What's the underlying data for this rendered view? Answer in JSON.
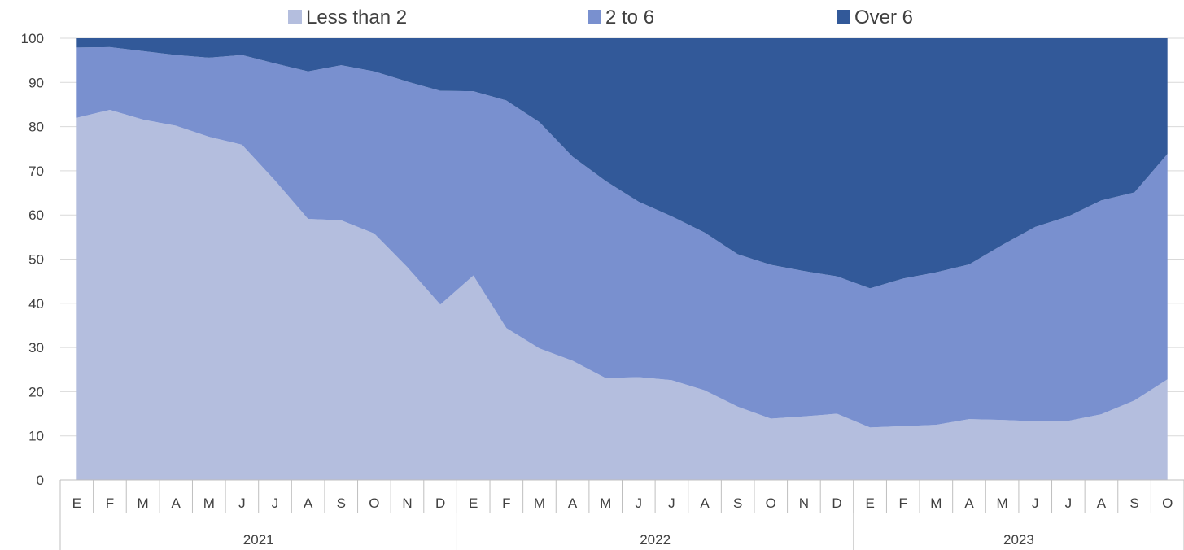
{
  "chart_data": {
    "type": "area",
    "stacked": true,
    "title": "",
    "xlabel": "",
    "ylabel": "",
    "ylim": [
      0,
      100
    ],
    "yticks": [
      0,
      10,
      20,
      30,
      40,
      50,
      60,
      70,
      80,
      90,
      100
    ],
    "grid": "horizontal",
    "legend_position": "top",
    "categories": [
      "E",
      "F",
      "M",
      "A",
      "M",
      "J",
      "J",
      "A",
      "S",
      "O",
      "N",
      "D",
      "E",
      "F",
      "M",
      "A",
      "M",
      "J",
      "J",
      "A",
      "S",
      "O",
      "N",
      "D",
      "E",
      "F",
      "M",
      "A",
      "M",
      "J",
      "J",
      "A",
      "S",
      "O"
    ],
    "groups": [
      {
        "label": "2021",
        "count": 12
      },
      {
        "label": "2022",
        "count": 12
      },
      {
        "label": "2023",
        "count": 10
      }
    ],
    "series": [
      {
        "name": "Less than 2",
        "color": "#b4bede",
        "values": [
          82,
          83.8,
          81.6,
          80.2,
          77.7,
          75.9,
          67.8,
          59.1,
          58.8,
          55.8,
          48.2,
          39.7,
          46.3,
          34.4,
          29.8,
          27,
          23.1,
          23.3,
          22.6,
          20.3,
          16.6,
          13.9,
          14.4,
          15,
          11.9,
          12.2,
          12.5,
          13.8,
          13.6,
          13.3,
          13.4,
          14.9,
          18,
          22.8
        ]
      },
      {
        "name": "2 to 6",
        "color": "#7990cf",
        "values": [
          15.9,
          14.2,
          15.5,
          16,
          17.9,
          20.3,
          26.5,
          33.4,
          35.1,
          36.7,
          42,
          48.4,
          41.7,
          51.5,
          51.2,
          46.2,
          44.6,
          39.7,
          37.1,
          35.7,
          34.5,
          34.8,
          32.9,
          31.1,
          31.5,
          33.4,
          34.5,
          35,
          39.6,
          44,
          46.3,
          48.4,
          47.1,
          51
        ]
      },
      {
        "name": "Over 6",
        "color": "#325999",
        "values": [
          2.1,
          2,
          2.9,
          3.8,
          4.4,
          3.8,
          5.7,
          7.5,
          6.1,
          7.5,
          9.8,
          11.9,
          12,
          14.1,
          19,
          26.8,
          32.3,
          37,
          40.3,
          44,
          48.9,
          51.3,
          52.7,
          53.9,
          56.6,
          54.4,
          53,
          51.2,
          46.8,
          42.7,
          40.3,
          36.7,
          34.9,
          26.2
        ]
      }
    ]
  }
}
